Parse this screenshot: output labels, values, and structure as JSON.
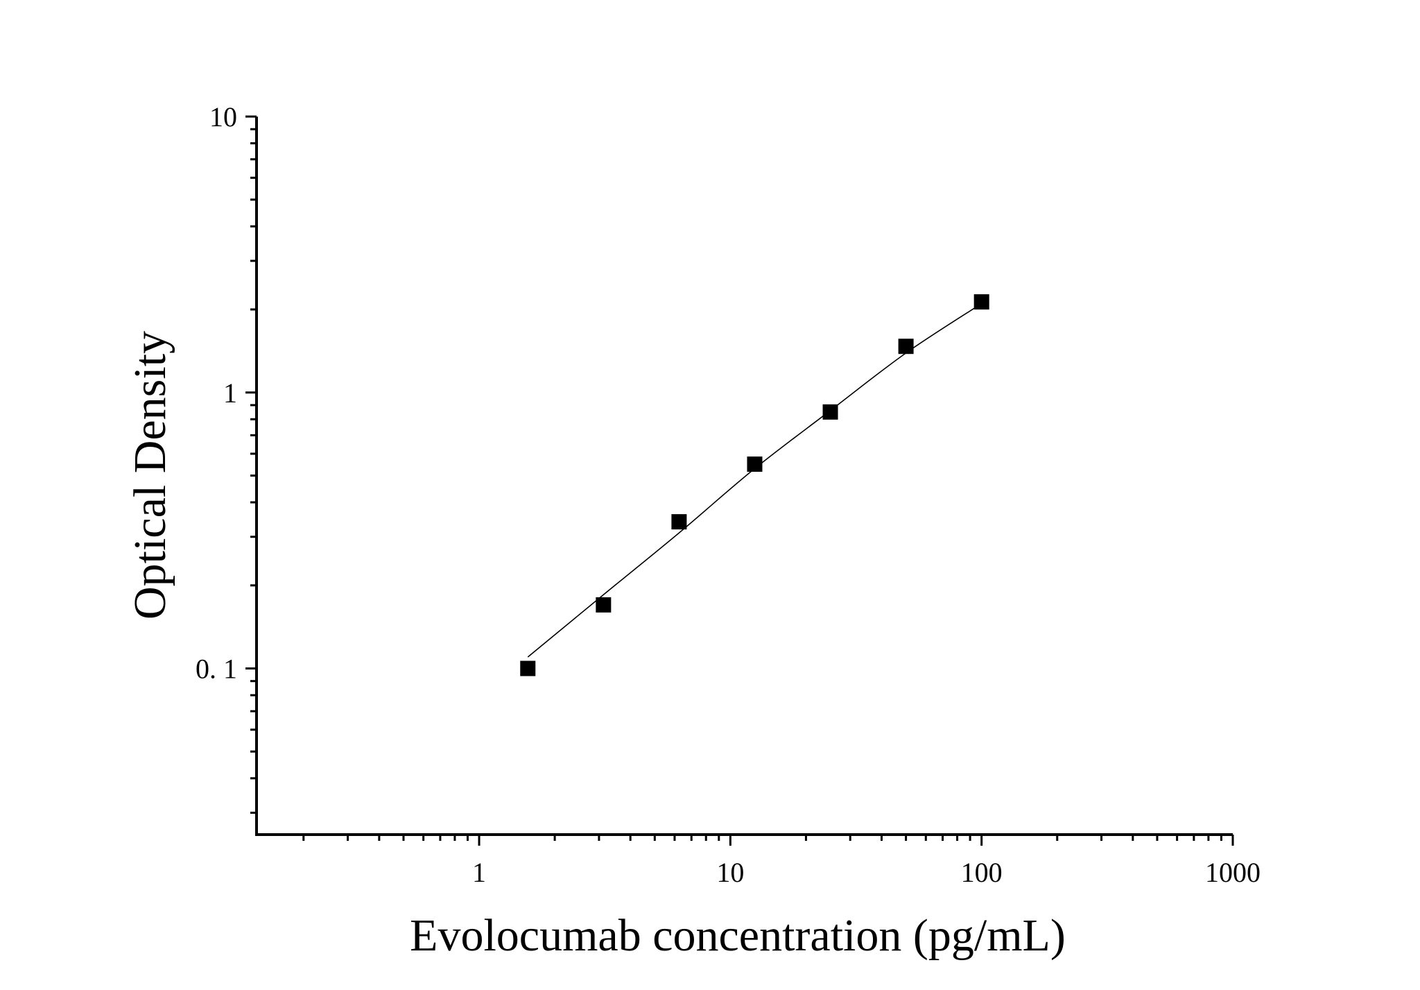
{
  "chart_data": {
    "type": "scatter",
    "title": "",
    "xlabel": "Evolocumab concentration (pg/mL)",
    "ylabel": "Optical Density",
    "xscale": "log",
    "yscale": "log",
    "xlim": [
      0.13,
      1000
    ],
    "ylim": [
      0.025,
      10
    ],
    "x_ticks": [
      {
        "value": 1,
        "label": "1"
      },
      {
        "value": 10,
        "label": "10"
      },
      {
        "value": 100,
        "label": "100"
      },
      {
        "value": 1000,
        "label": "1000"
      }
    ],
    "y_ticks": [
      {
        "value": 0.1,
        "label": "0. 1"
      },
      {
        "value": 1,
        "label": "1"
      },
      {
        "value": 10,
        "label": "10"
      }
    ],
    "grid": false,
    "legend": "none",
    "marker": "square",
    "color": "#000000",
    "series": [
      {
        "x": [
          1.5625,
          3.125,
          6.25,
          12.5,
          25,
          50,
          100
        ],
        "y": [
          0.1,
          0.17,
          0.34,
          0.55,
          0.85,
          1.47,
          2.13
        ]
      }
    ],
    "fit_curve": {
      "x": [
        1.5625,
        3.125,
        6.25,
        12.5,
        25,
        50,
        100
      ],
      "y": [
        0.11,
        0.185,
        0.31,
        0.53,
        0.86,
        1.39,
        2.1
      ]
    }
  }
}
